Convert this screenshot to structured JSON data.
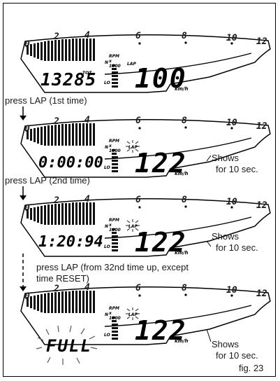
{
  "figure_label": "fig. 23",
  "scale": {
    "ticks": [
      "0",
      "2",
      "4",
      "6",
      "8",
      "10",
      "12"
    ],
    "rpm_label": "RPM x 1000",
    "neutral": "N",
    "lap": "LAP",
    "low": "LO",
    "tot": "TOT",
    "unit": "km/h"
  },
  "panels": [
    {
      "left_value": "13285",
      "speed": "100",
      "show_tot": true
    },
    {
      "left_value": "0:00:00",
      "speed": "122",
      "show_tot": false
    },
    {
      "left_value": "1:20:94",
      "speed": "122",
      "show_tot": false
    },
    {
      "left_value": "FULL",
      "speed": "122",
      "show_tot": false
    }
  ],
  "steps": {
    "step1": "press LAP (1st time)",
    "step2": "press LAP (2nd time)",
    "step3_line1": "press LAP (from 32nd time up, except",
    "step3_line2": "time RESET)"
  },
  "side_notes": {
    "n2a": "Shows",
    "n2b": "for 10 sec.",
    "n3a": "Shows",
    "n3b": "for 10 sec.",
    "n4a": "Shows",
    "n4b": "for 10 sec."
  }
}
